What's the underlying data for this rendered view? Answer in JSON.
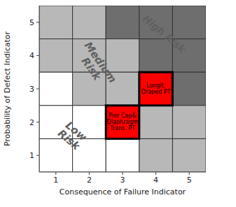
{
  "chart_data": {
    "type": "heatmap",
    "xlabel": "Consequence of Failure Indicator",
    "ylabel": "Probability of Defect Indicator",
    "xlim": [
      0.5,
      5.5
    ],
    "ylim": [
      0.5,
      5.5
    ],
    "xticks": [
      1,
      2,
      3,
      4,
      5
    ],
    "yticks": [
      1,
      2,
      3,
      4,
      5
    ],
    "x": [
      1,
      2,
      3,
      4,
      5
    ],
    "y": [
      5,
      4,
      3,
      2,
      1
    ],
    "cells": [
      [
        "#b8b8b8",
        "#b8b8b8",
        "#6e6e6e",
        "#6e6e6e",
        "#6e6e6e"
      ],
      [
        "#b8b8b8",
        "#b8b8b8",
        "#b8b8b8",
        "#6e6e6e",
        "#6e6e6e"
      ],
      [
        "#ffffff",
        "#b8b8b8",
        "#b8b8b8",
        "#ff0000",
        "#6e6e6e"
      ],
      [
        "#ffffff",
        "#ffffff",
        "#ff0000",
        "#b8b8b8",
        "#b8b8b8"
      ],
      [
        "#ffffff",
        "#ffffff",
        "#ffffff",
        "#b8b8b8",
        "#b8b8b8"
      ]
    ],
    "highlight": [
      [
        4,
        3
      ],
      [
        3,
        2
      ]
    ],
    "labels": [
      {
        "x": 4,
        "y": 3,
        "text": "Longit.\nDraped PT"
      },
      {
        "x": 3,
        "y": 2,
        "text": "Pier Cap&\nDiaphragm\nTrans. PT"
      }
    ],
    "zone_labels": [
      {
        "x": 1.5,
        "y": 1.6,
        "text": "Low\nRisk"
      },
      {
        "x": 2.2,
        "y": 3.7,
        "text": "Medium\nRisk"
      },
      {
        "x": 4.25,
        "y": 4.65,
        "text": "High Risk"
      }
    ]
  }
}
